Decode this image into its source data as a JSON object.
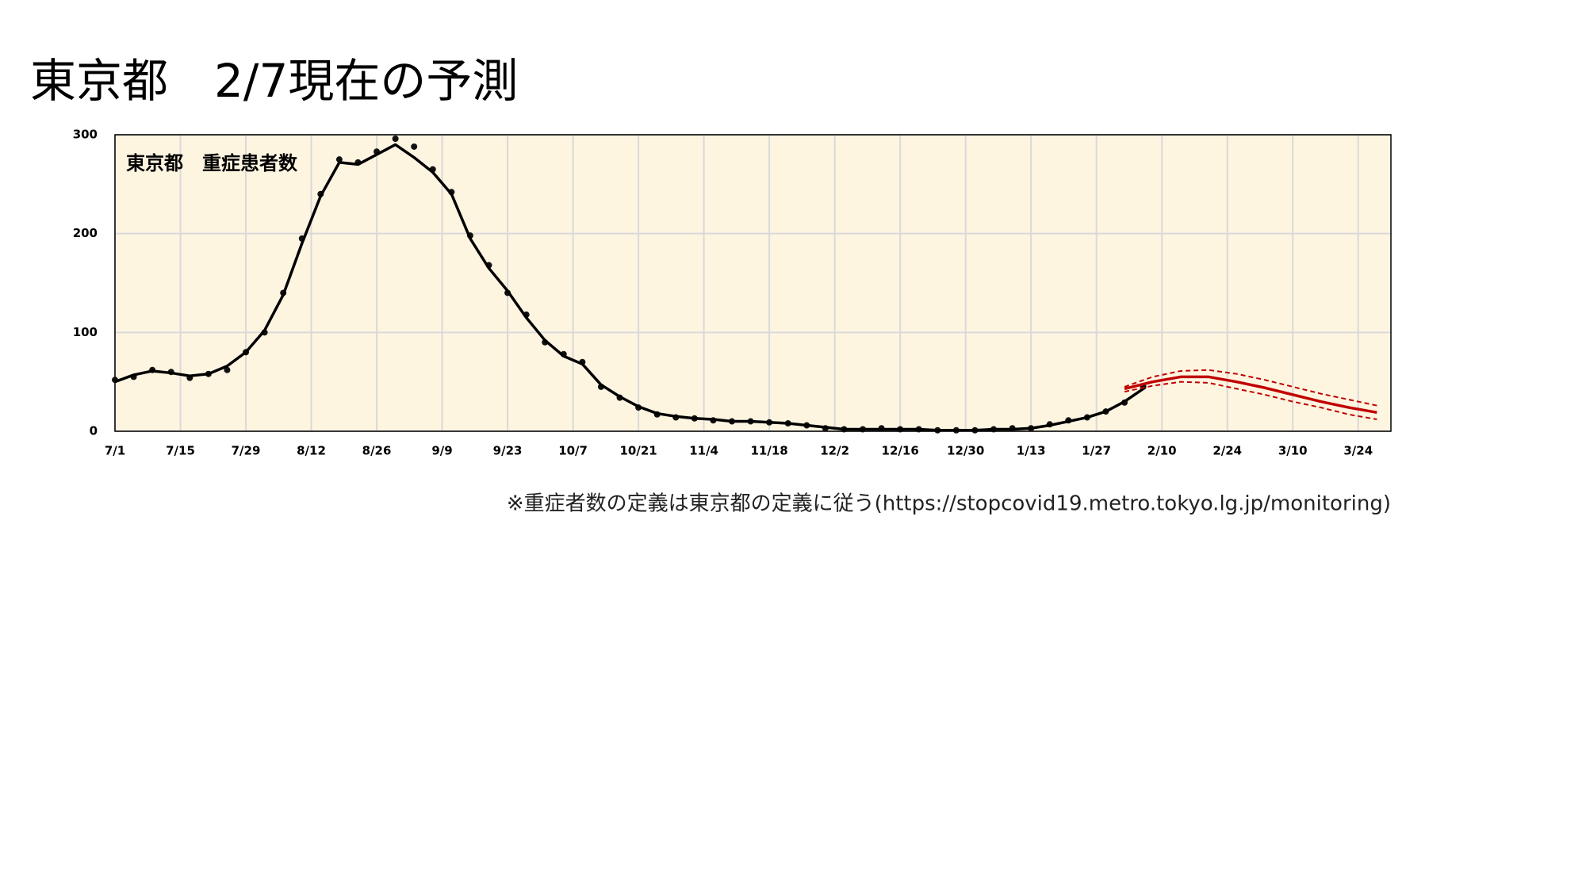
{
  "chart_data": {
    "type": "line",
    "page_title": "東京都　2/7現在の予測",
    "title": "東京都　重症患者数",
    "footnote": "※重症者数の定義は東京都の定義に従う(https://stopcovid19.metro.tokyo.lg.jp/monitoring)",
    "xlim": [
      0,
      273
    ],
    "ylim": [
      0,
      300
    ],
    "yticks": [
      0,
      100,
      200,
      300
    ],
    "xticks": [
      {
        "value": 0,
        "label": "7/1"
      },
      {
        "value": 14,
        "label": "7/15"
      },
      {
        "value": 28,
        "label": "7/29"
      },
      {
        "value": 42,
        "label": "8/12"
      },
      {
        "value": 56,
        "label": "8/26"
      },
      {
        "value": 70,
        "label": "9/9"
      },
      {
        "value": 84,
        "label": "9/23"
      },
      {
        "value": 98,
        "label": "10/7"
      },
      {
        "value": 112,
        "label": "10/21"
      },
      {
        "value": 126,
        "label": "11/4"
      },
      {
        "value": 140,
        "label": "11/18"
      },
      {
        "value": 154,
        "label": "12/2"
      },
      {
        "value": 168,
        "label": "12/16"
      },
      {
        "value": 182,
        "label": "12/30"
      },
      {
        "value": 196,
        "label": "1/13"
      },
      {
        "value": 210,
        "label": "1/27"
      },
      {
        "value": 224,
        "label": "2/10"
      },
      {
        "value": 238,
        "label": "2/24"
      },
      {
        "value": 252,
        "label": "3/10"
      },
      {
        "value": 266,
        "label": "3/24"
      }
    ],
    "grid": true,
    "background": "#fef5e1",
    "series": [
      {
        "style": "points",
        "color": "#111111",
        "x": [
          0,
          4,
          8,
          12,
          16,
          20,
          24,
          28,
          32,
          36,
          40,
          44,
          48,
          52,
          56,
          60,
          64,
          68,
          72,
          76,
          80,
          84,
          88,
          92,
          96,
          100,
          104,
          108,
          112,
          116,
          120,
          124,
          128,
          132,
          136,
          140,
          144,
          148,
          152,
          156,
          160,
          164,
          168,
          172,
          176,
          180,
          184,
          188,
          192,
          196,
          200,
          204,
          208,
          212,
          216,
          220
        ],
        "values": [
          52,
          55,
          62,
          60,
          54,
          58,
          62,
          80,
          100,
          140,
          195,
          240,
          275,
          272,
          283,
          296,
          288,
          265,
          242,
          198,
          168,
          140,
          118,
          90,
          78,
          70,
          45,
          34,
          24,
          17,
          14,
          13,
          11,
          10,
          10,
          9,
          8,
          6,
          3,
          2,
          2,
          3,
          2,
          2,
          1,
          1,
          1,
          2,
          3,
          3,
          7,
          11,
          14,
          20,
          29,
          45
        ]
      },
      {
        "style": "solid",
        "color": "#000000",
        "x": [
          0,
          4,
          8,
          12,
          16,
          20,
          24,
          28,
          32,
          36,
          40,
          44,
          48,
          52,
          56,
          60,
          64,
          68,
          72,
          76,
          80,
          84,
          88,
          92,
          96,
          100,
          104,
          108,
          112,
          116,
          120,
          124,
          128,
          132,
          136,
          140,
          144,
          148,
          152,
          156,
          160,
          164,
          168,
          172,
          176,
          180,
          184,
          188,
          192,
          196,
          200,
          204,
          208,
          212,
          216,
          220
        ],
        "values": [
          50,
          57,
          61,
          59,
          56,
          58,
          66,
          80,
          102,
          138,
          190,
          238,
          272,
          270,
          280,
          290,
          277,
          262,
          240,
          195,
          165,
          142,
          115,
          92,
          76,
          68,
          47,
          35,
          25,
          18,
          15,
          13,
          12,
          10,
          10,
          9,
          8,
          6,
          4,
          2,
          2,
          2,
          2,
          2,
          1,
          1,
          1,
          2,
          2,
          3,
          6,
          10,
          14,
          20,
          30,
          43
        ]
      },
      {
        "style": "solid",
        "color": "#c00000",
        "x": [
          216,
          222,
          228,
          234,
          240,
          246,
          252,
          258,
          264,
          270
        ],
        "values": [
          43,
          50,
          55,
          55,
          50,
          44,
          37,
          30,
          24,
          19
        ]
      },
      {
        "style": "dashed",
        "color": "#c00000",
        "x": [
          216,
          222,
          228,
          234,
          240,
          246,
          252,
          258,
          264,
          270
        ],
        "values": [
          45,
          55,
          61,
          62,
          58,
          52,
          45,
          38,
          32,
          26
        ]
      },
      {
        "style": "dashed",
        "color": "#c00000",
        "x": [
          216,
          222,
          228,
          234,
          240,
          246,
          252,
          258,
          264,
          270
        ],
        "values": [
          40,
          46,
          50,
          49,
          43,
          37,
          30,
          24,
          17,
          12
        ]
      }
    ]
  }
}
